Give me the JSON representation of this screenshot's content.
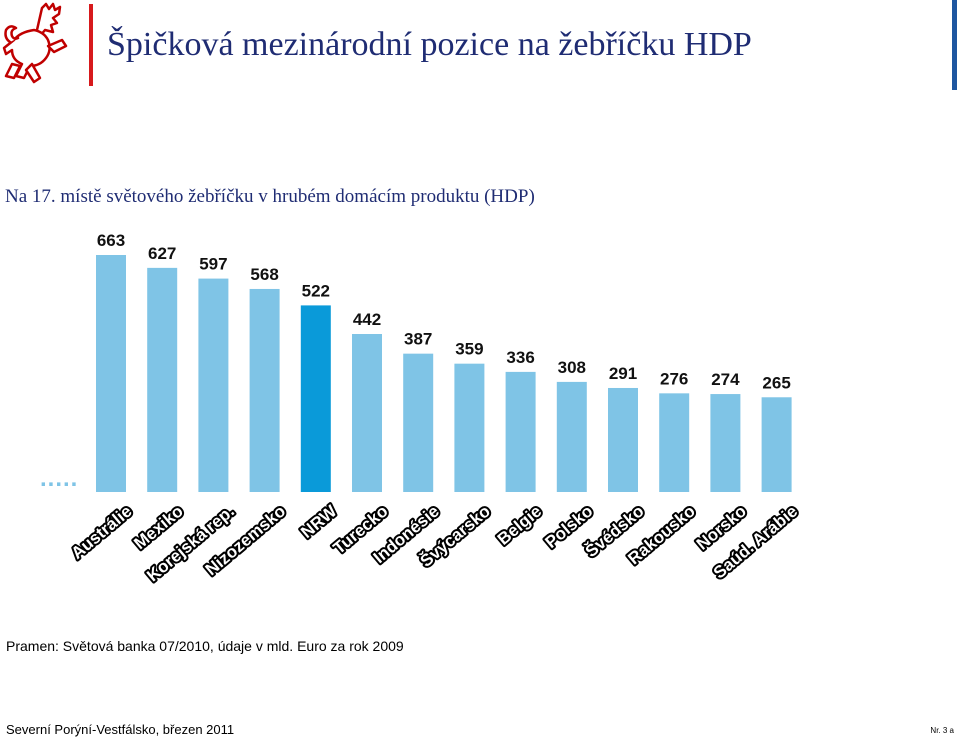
{
  "header": {
    "title": "Špičková mezinárodní pozice na žebříčku HDP",
    "logo_icon": "czech-lion-icon"
  },
  "colors": {
    "title": "#1f2c73",
    "bar": "#7fc4e6",
    "highlight_bar": "#0a9ad9",
    "accent_red": "#d7191c",
    "accent_blue": "#1e56a0"
  },
  "chart_data": {
    "type": "bar",
    "title": "Na 17. místě světového žebříčku v hrubém domácím produktu (HDP)",
    "categories": [
      "Austrálie",
      "Mexiko",
      "Korejská rep.",
      "Nizozemsko",
      "NRW",
      "Turecko",
      "Indonésie",
      "Švýcarsko",
      "Belgie",
      "Polsko",
      "Švédsko",
      "Rakousko",
      "Norsko",
      "Saúd. Arábie"
    ],
    "values": [
      663,
      627,
      597,
      568,
      522,
      442,
      387,
      359,
      336,
      308,
      291,
      276,
      274,
      265
    ],
    "highlight": "NRW",
    "ylim": [
      0,
      663
    ],
    "grid": false,
    "legend": "none",
    "truncation_mark": "....."
  },
  "footer": {
    "source": "Pramen: Světová banka 07/2010, údaje v mld. Euro za rok 2009",
    "text": "Severní Porýní-Vestfálsko, březen 2011",
    "page": "Nr. 3 a"
  }
}
